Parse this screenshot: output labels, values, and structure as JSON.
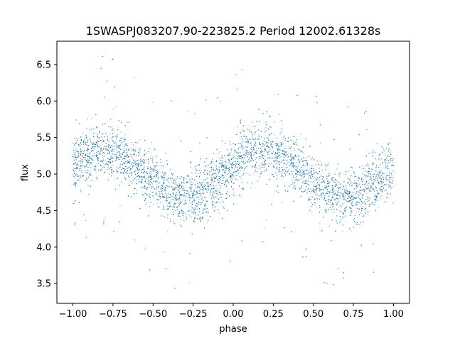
{
  "chart_data": {
    "type": "scatter",
    "title": "1SWASPJ083207.90-223825.2 Period 12002.61328s",
    "xlabel": "phase",
    "ylabel": "flux",
    "xlim": [
      -1.1,
      1.1
    ],
    "ylim": [
      3.23,
      6.82
    ],
    "xticks": [
      -1.0,
      -0.75,
      -0.5,
      -0.25,
      0.0,
      0.25,
      0.5,
      0.75,
      1.0
    ],
    "xtick_labels": [
      "−1.00",
      "−0.75",
      "−0.50",
      "−0.25",
      "0.00",
      "0.25",
      "0.50",
      "0.75",
      "1.00"
    ],
    "yticks": [
      3.5,
      4.0,
      4.5,
      5.0,
      5.5,
      6.0,
      6.5
    ],
    "ytick_labels": [
      "3.5",
      "4.0",
      "4.5",
      "5.0",
      "5.5",
      "6.0",
      "6.5"
    ],
    "grid": false,
    "legend": "none",
    "marker_color": "#1f77b4",
    "series": [
      {
        "phase_range": [
          -1.0,
          1.0
        ],
        "mean_flux": 5.0,
        "amplitude": 0.32,
        "peak_phase": 0.2,
        "trough_phase": -0.3,
        "scatter_sigma": 0.19,
        "approx_points": 9000
      }
    ]
  }
}
